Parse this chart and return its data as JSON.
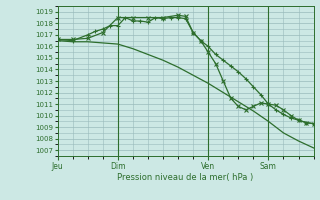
{
  "bg_color": "#cce8e4",
  "plot_bg": "#cce8e4",
  "grid_color": "#99bbbb",
  "line_color": "#2d6e2d",
  "xlabel_text": "Pression niveau de la mer( hPa )",
  "ylim": [
    1006.5,
    1019.5
  ],
  "yticks": [
    1007,
    1008,
    1009,
    1010,
    1011,
    1012,
    1013,
    1014,
    1015,
    1016,
    1017,
    1018,
    1019
  ],
  "xtick_labels": [
    "Jeu",
    "Dim",
    "Ven",
    "Sam"
  ],
  "xtick_positions": [
    0,
    16,
    40,
    56
  ],
  "vline_positions": [
    16,
    40,
    56
  ],
  "xlim": [
    0,
    68
  ],
  "series1_x": [
    0,
    4,
    8,
    12,
    16,
    20,
    24,
    28,
    32,
    36,
    40,
    44,
    48,
    52,
    56,
    60,
    64,
    68
  ],
  "series1_y": [
    1016.5,
    1016.4,
    1016.4,
    1016.3,
    1016.2,
    1015.8,
    1015.3,
    1014.8,
    1014.2,
    1013.5,
    1012.8,
    1012.0,
    1011.2,
    1010.4,
    1009.5,
    1008.5,
    1007.8,
    1007.2
  ],
  "series2_x": [
    0,
    4,
    8,
    10,
    12,
    14,
    16,
    18,
    20,
    22,
    24,
    26,
    28,
    30,
    32,
    34,
    36,
    38,
    40,
    42,
    44,
    46,
    48,
    50,
    52,
    54,
    56,
    58,
    60,
    62,
    64,
    66,
    68
  ],
  "series2_y": [
    1016.6,
    1016.5,
    1017.0,
    1017.3,
    1017.5,
    1017.8,
    1017.8,
    1018.5,
    1018.2,
    1018.2,
    1018.1,
    1018.5,
    1018.4,
    1018.5,
    1018.5,
    1018.4,
    1017.2,
    1016.5,
    1016.0,
    1015.3,
    1014.8,
    1014.3,
    1013.8,
    1013.2,
    1012.5,
    1011.8,
    1011.0,
    1010.5,
    1010.1,
    1009.8,
    1009.6,
    1009.4,
    1009.3
  ],
  "series3_x": [
    0,
    4,
    8,
    12,
    16,
    20,
    24,
    28,
    32,
    34,
    36,
    38,
    40,
    42,
    44,
    46,
    48,
    50,
    52,
    54,
    56,
    58,
    60,
    62,
    64,
    66,
    68
  ],
  "series3_y": [
    1016.6,
    1016.6,
    1016.7,
    1017.2,
    1018.5,
    1018.5,
    1018.5,
    1018.5,
    1018.7,
    1018.6,
    1017.2,
    1016.5,
    1015.5,
    1014.5,
    1013.0,
    1011.5,
    1010.8,
    1010.5,
    1010.8,
    1011.1,
    1011.0,
    1010.9,
    1010.5,
    1010.0,
    1009.6,
    1009.4,
    1009.3
  ]
}
